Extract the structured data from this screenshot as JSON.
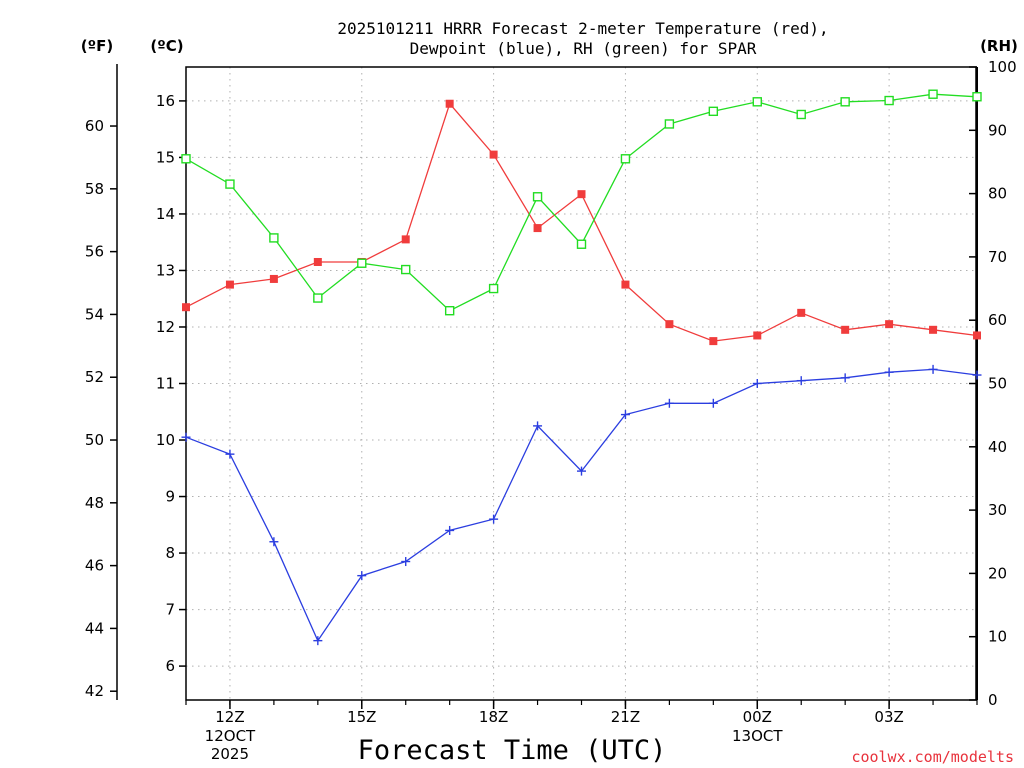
{
  "chart_data": {
    "type": "line",
    "title_line1": "2025101211 HRRR Forecast 2-meter Temperature (red),",
    "title_line2": "Dewpoint (blue), RH (green) for SPAR",
    "xlabel": "Forecast Time (UTC)",
    "credit": "coolwx.com/modelts",
    "credit_color": "#e8323c",
    "axis_units": {
      "fahrenheit": "(ºF)",
      "celsius": "(ºC)",
      "rh": "(RH)"
    },
    "x_hours": [
      11,
      12,
      13,
      14,
      15,
      16,
      17,
      18,
      19,
      20,
      21,
      22,
      23,
      24,
      25,
      26,
      27,
      28,
      29
    ],
    "xlim": [
      11,
      29
    ],
    "x_ticks": [
      {
        "hour": 12,
        "label": "12Z"
      },
      {
        "hour": 15,
        "label": "15Z"
      },
      {
        "hour": 18,
        "label": "18Z"
      },
      {
        "hour": 21,
        "label": "21Z"
      },
      {
        "hour": 24,
        "label": "00Z"
      },
      {
        "hour": 27,
        "label": "03Z"
      }
    ],
    "date_labels": [
      {
        "hour": 12,
        "lines": [
          "12OCT",
          "2025"
        ]
      },
      {
        "hour": 24,
        "lines": [
          "13OCT"
        ]
      }
    ],
    "celsius_axis": {
      "ylim": [
        5.4,
        16.6
      ],
      "ticks": [
        6,
        7,
        8,
        9,
        10,
        11,
        12,
        13,
        14,
        15,
        16
      ]
    },
    "fahrenheit_axis": {
      "ticks": [
        42,
        44,
        46,
        48,
        50,
        52,
        54,
        56,
        58,
        60
      ]
    },
    "rh_axis": {
      "ylim": [
        0,
        100
      ],
      "ticks": [
        0,
        10,
        20,
        30,
        40,
        50,
        60,
        70,
        80,
        90,
        100
      ]
    },
    "series": [
      {
        "name": "Temperature",
        "axis": "celsius",
        "color": "#f03c3c",
        "marker": "filled-square",
        "values": [
          12.35,
          12.75,
          12.85,
          13.15,
          13.15,
          13.55,
          15.95,
          15.05,
          13.75,
          14.35,
          12.75,
          12.05,
          11.75,
          11.85,
          12.25,
          11.95,
          12.05,
          11.95,
          11.85
        ]
      },
      {
        "name": "Dewpoint",
        "axis": "celsius",
        "color": "#2b3ee0",
        "marker": "plus",
        "values": [
          10.05,
          9.75,
          8.2,
          6.45,
          7.6,
          7.85,
          8.4,
          8.6,
          10.25,
          9.45,
          10.45,
          10.65,
          10.65,
          11.0,
          11.05,
          11.1,
          11.2,
          11.25,
          11.15
        ]
      },
      {
        "name": "RH",
        "axis": "rh",
        "color": "#22dd22",
        "marker": "open-square",
        "values": [
          85.5,
          81.5,
          73.0,
          63.5,
          69.0,
          68.0,
          61.5,
          65.0,
          79.5,
          72.0,
          85.5,
          91.0,
          93.0,
          94.5,
          92.5,
          94.5,
          94.7,
          95.7,
          95.3
        ]
      }
    ]
  }
}
